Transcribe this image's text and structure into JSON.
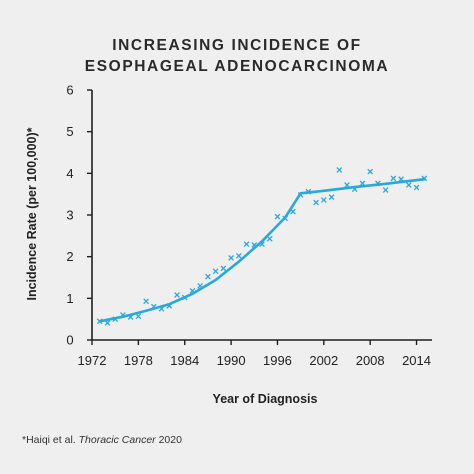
{
  "title_line1": "INCREASING INCIDENCE OF",
  "title_line2": "ESOPHAGEAL ADENOCARCINOMA",
  "footnote": {
    "prefix": "*Haiqi et al. ",
    "journal": "Thoracic Cancer",
    "year": " 2020"
  },
  "colors": {
    "series": "#29a8dd",
    "axis": "#1f1f1f",
    "background": "#efefef"
  },
  "chart_data": {
    "type": "scatter",
    "title": "INCREASING INCIDENCE OF ESOPHAGEAL ADENOCARCINOMA",
    "xlabel": "Year of Diagnosis",
    "ylabel": "Incidence Rate (per 100,000)*",
    "xlim": [
      1972,
      2016
    ],
    "ylim": [
      0,
      6
    ],
    "xticks": [
      1972,
      1978,
      1984,
      1990,
      1996,
      2002,
      2008,
      2014
    ],
    "yticks": [
      0,
      1,
      2,
      3,
      4,
      5,
      6
    ],
    "grid": false,
    "series": [
      {
        "marker": "x",
        "x": [
          1973,
          1974,
          1975,
          1976,
          1977,
          1978,
          1979,
          1980,
          1981,
          1982,
          1983,
          1984,
          1985,
          1986,
          1987,
          1988,
          1989,
          1990,
          1991,
          1992,
          1993,
          1994,
          1995,
          1996,
          1997,
          1998,
          1999,
          2000,
          2001,
          2002,
          2003,
          2004,
          2005,
          2006,
          2007,
          2008,
          2009,
          2010,
          2011,
          2012,
          2013,
          2014,
          2015
        ],
        "y": [
          0.45,
          0.41,
          0.5,
          0.6,
          0.55,
          0.57,
          0.93,
          0.8,
          0.75,
          0.82,
          1.08,
          1.02,
          1.18,
          1.3,
          1.52,
          1.65,
          1.72,
          1.97,
          2.02,
          2.3,
          2.28,
          2.3,
          2.43,
          2.96,
          2.92,
          3.08,
          3.48,
          3.56,
          3.3,
          3.36,
          3.43,
          4.08,
          3.72,
          3.62,
          3.76,
          4.04,
          3.76,
          3.6,
          3.88,
          3.86,
          3.72,
          3.66,
          3.88
        ]
      },
      {
        "marker": "line",
        "x": [
          1973,
          1976,
          1979,
          1982,
          1985,
          1988,
          1991,
          1994,
          1997,
          1999,
          2002,
          2006,
          2010,
          2015
        ],
        "y": [
          0.45,
          0.56,
          0.7,
          0.86,
          1.11,
          1.44,
          1.88,
          2.37,
          2.94,
          3.52,
          3.58,
          3.67,
          3.75,
          3.86
        ]
      }
    ]
  }
}
